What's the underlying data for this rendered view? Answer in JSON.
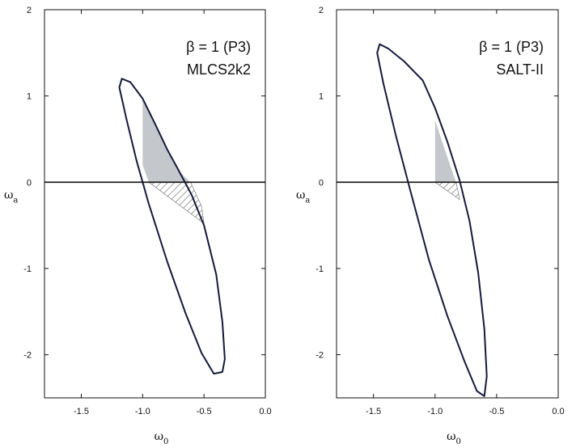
{
  "chart_data": [
    {
      "type": "scatter",
      "panel": "left",
      "annotations": [
        "β = 1 (P3)",
        "MLCS2k2"
      ],
      "xlabel": "ω",
      "xlabel_sub": "0",
      "ylabel": "ω",
      "ylabel_sub": "a",
      "xlim": [
        -1.8,
        0.0
      ],
      "ylim": [
        -2.5,
        2.0
      ],
      "xticks": [
        -1.5,
        -1.0,
        -0.5,
        0.0
      ],
      "xtick_labels": [
        "-1.5",
        "-1.0",
        "-0.5",
        "0.0"
      ],
      "yticks": [
        -2,
        -1,
        0,
        1,
        2
      ],
      "ytick_labels": [
        "-2",
        "-1",
        "0",
        "1",
        "2"
      ],
      "reference_line_y": 0,
      "contour": [
        [
          -1.17,
          1.2
        ],
        [
          -1.1,
          1.16
        ],
        [
          -1.0,
          0.97
        ],
        [
          -0.9,
          0.68
        ],
        [
          -0.8,
          0.38
        ],
        [
          -0.7,
          0.12
        ],
        [
          -0.6,
          -0.15
        ],
        [
          -0.5,
          -0.5
        ],
        [
          -0.4,
          -1.07
        ],
        [
          -0.35,
          -1.62
        ],
        [
          -0.33,
          -2.05
        ],
        [
          -0.35,
          -2.2
        ],
        [
          -0.42,
          -2.22
        ],
        [
          -0.52,
          -1.98
        ],
        [
          -0.65,
          -1.52
        ],
        [
          -0.8,
          -0.92
        ],
        [
          -0.95,
          -0.25
        ],
        [
          -1.05,
          0.25
        ],
        [
          -1.13,
          0.72
        ],
        [
          -1.19,
          1.1
        ],
        [
          -1.17,
          1.2
        ]
      ],
      "shaded_region": [
        [
          -1.0,
          0.97
        ],
        [
          -0.9,
          0.68
        ],
        [
          -0.8,
          0.38
        ],
        [
          -0.7,
          0.12
        ],
        [
          -0.61,
          0.0
        ],
        [
          -0.95,
          0.0
        ],
        [
          -1.0,
          0.2
        ],
        [
          -1.0,
          0.97
        ]
      ],
      "hatched_region": [
        [
          -0.95,
          0.0
        ],
        [
          -0.61,
          0.0
        ],
        [
          -0.52,
          -0.28
        ],
        [
          -0.5,
          -0.48
        ],
        [
          -0.95,
          0.0
        ]
      ]
    },
    {
      "type": "scatter",
      "panel": "right",
      "annotations": [
        "β = 1 (P3)",
        "SALT-II"
      ],
      "xlabel": "ω",
      "xlabel_sub": "0",
      "ylabel": "ω",
      "ylabel_sub": "a",
      "xlim": [
        -1.8,
        0.0
      ],
      "ylim": [
        -2.5,
        2.0
      ],
      "xticks": [
        -1.5,
        -1.0,
        -0.5,
        0.0
      ],
      "xtick_labels": [
        "-1.5",
        "-1.0",
        "-0.5",
        "0.0"
      ],
      "yticks": [
        -2,
        -1,
        0,
        1,
        2
      ],
      "ytick_labels": [
        "-2",
        "-1",
        "0",
        "1",
        "2"
      ],
      "reference_line_y": 0,
      "contour": [
        [
          -1.45,
          1.6
        ],
        [
          -1.38,
          1.55
        ],
        [
          -1.25,
          1.4
        ],
        [
          -1.1,
          1.18
        ],
        [
          -1.0,
          0.86
        ],
        [
          -0.9,
          0.47
        ],
        [
          -0.8,
          0.02
        ],
        [
          -0.72,
          -0.45
        ],
        [
          -0.65,
          -1.05
        ],
        [
          -0.6,
          -1.7
        ],
        [
          -0.58,
          -2.25
        ],
        [
          -0.6,
          -2.48
        ],
        [
          -0.66,
          -2.42
        ],
        [
          -0.76,
          -2.08
        ],
        [
          -0.9,
          -1.55
        ],
        [
          -1.05,
          -0.9
        ],
        [
          -1.2,
          -0.1
        ],
        [
          -1.32,
          0.55
        ],
        [
          -1.42,
          1.15
        ],
        [
          -1.47,
          1.5
        ],
        [
          -1.45,
          1.6
        ]
      ],
      "shaded_region": [
        [
          -1.0,
          0.72
        ],
        [
          -0.95,
          0.5
        ],
        [
          -0.89,
          0.25
        ],
        [
          -0.83,
          0.0
        ],
        [
          -1.0,
          0.0
        ],
        [
          -1.0,
          0.72
        ]
      ],
      "hatched_region": [
        [
          -1.0,
          0.0
        ],
        [
          -0.83,
          0.0
        ],
        [
          -0.8,
          -0.2
        ],
        [
          -1.0,
          0.0
        ]
      ]
    }
  ]
}
